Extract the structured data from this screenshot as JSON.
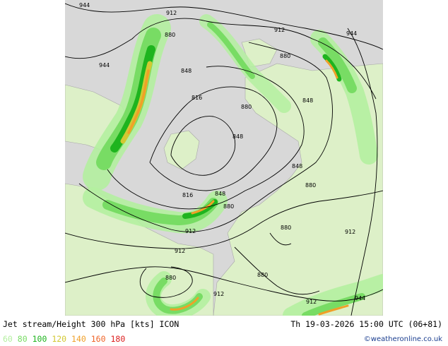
{
  "footer": {
    "title": "Jet stream/Height 300 hPa [kts] ICON",
    "datetime": "Th 19-03-2026 15:00 UTC (06+81)",
    "credit": "©weatheronline.co.uk"
  },
  "legend": [
    {
      "label": "60",
      "color": "#b4f0a0"
    },
    {
      "label": "80",
      "color": "#78dc64"
    },
    {
      "label": "100",
      "color": "#1eb41e"
    },
    {
      "label": "120",
      "color": "#d2c832"
    },
    {
      "label": "140",
      "color": "#f0a028"
    },
    {
      "label": "160",
      "color": "#f06428"
    },
    {
      "label": "180",
      "color": "#dc1e1e"
    }
  ],
  "contour_labels": [
    {
      "text": "944"
    },
    {
      "text": "912"
    },
    {
      "text": "880"
    },
    {
      "text": "912"
    },
    {
      "text": "944"
    },
    {
      "text": "880"
    },
    {
      "text": "944"
    },
    {
      "text": "848"
    },
    {
      "text": "816"
    },
    {
      "text": "880"
    },
    {
      "text": "848"
    },
    {
      "text": "848"
    },
    {
      "text": "848"
    },
    {
      "text": "880"
    },
    {
      "text": "816"
    },
    {
      "text": "848"
    },
    {
      "text": "880"
    },
    {
      "text": "912"
    },
    {
      "text": "880"
    },
    {
      "text": "912"
    },
    {
      "text": "912"
    },
    {
      "text": "880"
    },
    {
      "text": "880"
    },
    {
      "text": "912"
    },
    {
      "text": "912"
    },
    {
      "text": "944"
    }
  ]
}
